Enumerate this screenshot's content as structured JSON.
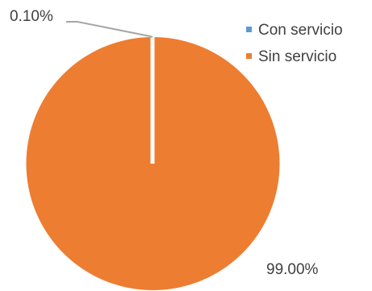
{
  "chart_data": {
    "type": "pie",
    "title": "",
    "slices": [
      {
        "name": "Con servicio",
        "value": 0.1,
        "label": "0.10%",
        "color": "#5B9BD5"
      },
      {
        "name": "Sin servicio",
        "value": 99.0,
        "label": "99.00%",
        "color": "#ED7D31"
      }
    ],
    "legend_position": "top-right",
    "leader_line_color": "#A6A6A6",
    "separator_color": "#FFFFFF"
  }
}
